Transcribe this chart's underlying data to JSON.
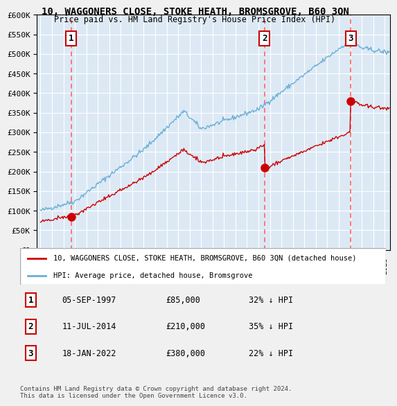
{
  "title": "10, WAGGONERS CLOSE, STOKE HEATH, BROMSGROVE, B60 3QN",
  "subtitle": "Price paid vs. HM Land Registry's House Price Index (HPI)",
  "ylabel": "",
  "ylim": [
    0,
    600000
  ],
  "yticks": [
    0,
    50000,
    100000,
    150000,
    200000,
    250000,
    300000,
    350000,
    400000,
    450000,
    500000,
    550000,
    600000
  ],
  "xlim_start": 1995.0,
  "xlim_end": 2025.5,
  "background_color": "#dce9f5",
  "plot_bg_color": "#dce9f5",
  "grid_color": "#ffffff",
  "sale_dates": [
    1997.67,
    2014.53,
    2022.04
  ],
  "sale_prices": [
    85000,
    210000,
    380000
  ],
  "sale_labels": [
    "1",
    "2",
    "3"
  ],
  "sale_date_strs": [
    "05-SEP-1997",
    "11-JUL-2014",
    "18-JAN-2022"
  ],
  "sale_price_strs": [
    "£85,000",
    "£210,000",
    "£380,000"
  ],
  "sale_hpi_strs": [
    "32% ↓ HPI",
    "35% ↓ HPI",
    "22% ↓ HPI"
  ],
  "hpi_line_color": "#6baed6",
  "price_line_color": "#cc0000",
  "sale_marker_color": "#cc0000",
  "dashed_line_color": "#ff6666",
  "legend_label_price": "10, WAGGONERS CLOSE, STOKE HEATH, BROMSGROVE, B60 3QN (detached house)",
  "legend_label_hpi": "HPI: Average price, detached house, Bromsgrove",
  "footer": "Contains HM Land Registry data © Crown copyright and database right 2024.\nThis data is licensed under the Open Government Licence v3.0."
}
